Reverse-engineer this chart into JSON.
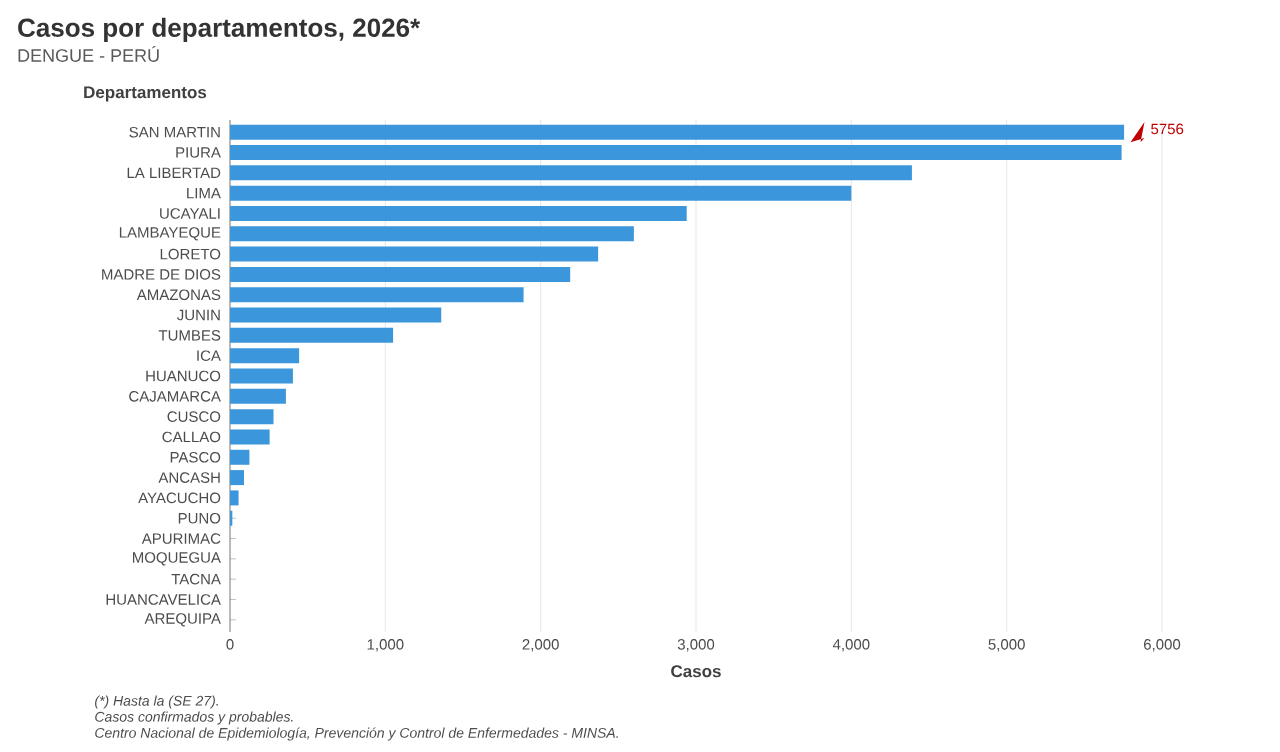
{
  "chart_data": {
    "type": "bar",
    "orientation": "horizontal",
    "title": "Casos por departamentos, 2026*",
    "subtitle": "DENGUE - PERÚ",
    "ylabel": "Departamentos",
    "xlabel": "Casos",
    "categories": [
      "SAN MARTIN",
      "PIURA",
      "LA LIBERTAD",
      "LIMA",
      "UCAYALI",
      "LAMBAYEQUE",
      "LORETO",
      "MADRE DE DIOS",
      "AMAZONAS",
      "JUNIN",
      "TUMBES",
      "ICA",
      "HUANUCO",
      "CAJAMARCA",
      "CUSCO",
      "CALLAO",
      "PASCO",
      "ANCASH",
      "AYACUCHO",
      "PUNO",
      "APURIMAC",
      "MOQUEGUA",
      "TACNA",
      "HUANCAVELICA",
      "AREQUIPA"
    ],
    "values": [
      5756,
      5740,
      4390,
      4000,
      2940,
      2600,
      2370,
      2190,
      1890,
      1360,
      1050,
      445,
      405,
      360,
      280,
      255,
      125,
      90,
      55,
      15,
      0,
      0,
      0,
      0,
      0
    ],
    "color": "#3b96db",
    "xlim": [
      0,
      6000
    ],
    "xticks": [
      0,
      {
        "value": 1000,
        "label": "1,000"
      },
      {
        "value": 2000,
        "label": "2,000"
      },
      {
        "value": 3000,
        "label": "3,000"
      },
      {
        "value": 4000,
        "label": "4,000"
      },
      {
        "value": 5000,
        "label": "5,000"
      },
      {
        "value": 6000,
        "label": "6,000"
      }
    ],
    "grid": "x",
    "annotations": [
      {
        "text": "5756",
        "x": 5756,
        "y": "SAN MARTIN"
      },
      "(*) Hasta la (SE 27).",
      "Casos confirmados y probables.",
      "Centro Nacional de Epidemiología, Prevención y Control de Enfermedades - MINSA."
    ]
  }
}
